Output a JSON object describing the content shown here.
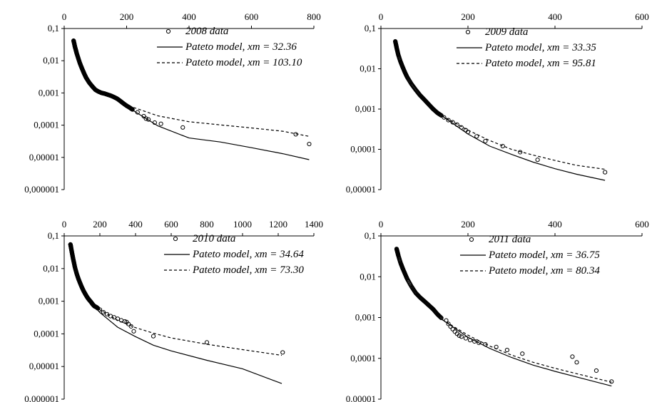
{
  "chart_data": [
    {
      "type": "scatter",
      "xlim": [
        0,
        800
      ],
      "x_ticks": [
        "0",
        "200",
        "400",
        "600",
        "800"
      ],
      "x_tick_values": [
        0,
        200,
        400,
        600,
        800
      ],
      "y_scale": "log",
      "ylim": [
        1e-06,
        0.1
      ],
      "y_ticks": [
        "0,1",
        "0,01",
        "0,001",
        "0,0001",
        "0,00001",
        "0,000001"
      ],
      "y_tick_values": [
        0.1,
        0.01,
        0.001,
        0.0001,
        1e-05,
        1e-06
      ],
      "x_axis_position": "top",
      "legend_position": "top-right",
      "grid": false,
      "series": [
        {
          "name": "2008 data",
          "style": "markers-open-circle",
          "x": [
            235,
            255,
            262,
            270,
            290,
            310,
            380,
            742,
            785
          ],
          "y": [
            0.00025,
            0.00019,
            0.00016,
            0.00015,
            0.00012,
            0.00011,
            8.5e-05,
            5.2e-05,
            2.6e-05
          ],
          "dense_x": [
            30,
            32,
            34,
            37,
            40,
            45,
            50,
            55,
            60,
            65,
            70,
            80,
            90,
            100,
            110,
            120,
            130,
            140,
            150,
            160,
            170,
            180,
            190,
            200,
            210,
            220
          ],
          "dense_y": [
            0.042,
            0.035,
            0.028,
            0.022,
            0.017,
            0.012,
            0.0085,
            0.0064,
            0.0049,
            0.0038,
            0.003,
            0.0021,
            0.0016,
            0.00125,
            0.0011,
            0.001,
            0.00095,
            0.00088,
            0.00082,
            0.00074,
            0.00066,
            0.00056,
            0.00047,
            0.0004,
            0.00035,
            0.0003
          ]
        },
        {
          "name": "Pateto model, xm = 32.36",
          "style": "solid-line",
          "x": [
            150,
            200,
            300,
            400,
            500,
            600,
            700,
            785
          ],
          "y": [
            0.00075,
            0.00038,
            9.5e-05,
            4e-05,
            3e-05,
            2e-05,
            1.3e-05,
            8.5e-06
          ]
        },
        {
          "name": "Pateto model, xm = 103.10",
          "style": "dashed-line",
          "x": [
            150,
            200,
            300,
            400,
            500,
            600,
            700,
            785
          ],
          "y": [
            0.00075,
            0.00042,
            0.000195,
            0.000128,
            0.000102,
            8.2e-05,
            6.5e-05,
            4.5e-05
          ]
        }
      ]
    },
    {
      "type": "scatter",
      "xlim": [
        0,
        600
      ],
      "x_ticks": [
        "0",
        "200",
        "400",
        "600"
      ],
      "x_tick_values": [
        0,
        200,
        400,
        600
      ],
      "y_scale": "log",
      "ylim": [
        1e-05,
        0.1
      ],
      "y_ticks": [
        "0,1",
        "0,01",
        "0,001",
        "0,0001",
        "0,00001"
      ],
      "y_tick_values": [
        0.1,
        0.01,
        0.001,
        0.0001,
        1e-05
      ],
      "x_axis_position": "top",
      "legend_position": "top-right",
      "grid": false,
      "series": [
        {
          "name": "2009 data",
          "style": "markers-open-circle",
          "x": [
            145,
            155,
            165,
            175,
            185,
            195,
            200,
            220,
            240,
            280,
            320,
            360,
            515
          ],
          "y": [
            0.00062,
            0.00053,
            0.00047,
            0.00041,
            0.00035,
            0.0003,
            0.00027,
            0.00021,
            0.00016,
            0.00012,
            8.5e-05,
            5.5e-05,
            2.7e-05
          ],
          "dense_x": [
            33,
            35,
            37,
            40,
            45,
            50,
            55,
            60,
            70,
            80,
            90,
            100,
            110,
            120,
            130,
            140
          ],
          "dense_y": [
            0.048,
            0.038,
            0.03,
            0.022,
            0.015,
            0.011,
            0.0082,
            0.0063,
            0.0042,
            0.003,
            0.0022,
            0.0017,
            0.0013,
            0.001,
            0.0008,
            0.00068
          ]
        },
        {
          "name": "Pateto model, xm = 33.35",
          "style": "solid-line",
          "x": [
            140,
            200,
            250,
            300,
            350,
            400,
            450,
            515
          ],
          "y": [
            0.00068,
            0.00024,
            0.00012,
            7.5e-05,
            4.8e-05,
            3.3e-05,
            2.4e-05,
            1.7e-05
          ]
        },
        {
          "name": "Pateto model, xm = 95.81",
          "style": "dashed-line",
          "x": [
            140,
            200,
            250,
            300,
            350,
            400,
            450,
            515
          ],
          "y": [
            0.00068,
            0.0003,
            0.000165,
            0.0001,
            7.2e-05,
            5.3e-05,
            4e-05,
            3.2e-05
          ]
        }
      ]
    },
    {
      "type": "scatter",
      "xlim": [
        0,
        1400
      ],
      "x_ticks": [
        "0",
        "200",
        "400",
        "600",
        "800",
        "1000",
        "1200",
        "1400"
      ],
      "x_tick_values": [
        0,
        200,
        400,
        600,
        800,
        1000,
        1200,
        1400
      ],
      "y_scale": "log",
      "ylim": [
        1e-06,
        0.1
      ],
      "y_ticks": [
        "0,1",
        "0,01",
        "0,001",
        "0,0001",
        "0,00001",
        "0,000001"
      ],
      "y_tick_values": [
        0.1,
        0.01,
        0.001,
        0.0001,
        1e-05,
        1e-06
      ],
      "x_axis_position": "top",
      "legend_position": "top-right",
      "grid": false,
      "series": [
        {
          "name": "2010 data",
          "style": "markers-open-circle",
          "x": [
            200,
            220,
            240,
            260,
            280,
            300,
            320,
            340,
            350,
            360,
            375,
            390,
            500,
            800,
            1225
          ],
          "y": [
            0.00055,
            0.00046,
            0.0004,
            0.00035,
            0.00032,
            0.00029,
            0.00026,
            0.00024,
            0.00023,
            0.0002,
            0.00017,
            0.00012,
            8.5e-05,
            5.5e-05,
            2.7e-05
          ],
          "dense_x": [
            35,
            38,
            42,
            46,
            50,
            55,
            60,
            70,
            80,
            90,
            100,
            110,
            120,
            130,
            140,
            150,
            160,
            170,
            180,
            190
          ],
          "dense_y": [
            0.055,
            0.045,
            0.034,
            0.026,
            0.02,
            0.015,
            0.011,
            0.007,
            0.0048,
            0.0035,
            0.0026,
            0.002,
            0.0016,
            0.0013,
            0.0011,
            0.00095,
            0.0008,
            0.0007,
            0.00066,
            0.0006
          ]
        },
        {
          "name": "Pateto model, xm = 34.64",
          "style": "solid-line",
          "x": [
            150,
            200,
            300,
            400,
            500,
            600,
            800,
            1000,
            1220
          ],
          "y": [
            0.0009,
            0.00045,
            0.00016,
            8.2e-05,
            4.5e-05,
            3e-05,
            1.55e-05,
            8.5e-06,
            3e-06
          ]
        },
        {
          "name": "Pateto model, xm = 73.30",
          "style": "dashed-line",
          "x": [
            150,
            200,
            300,
            400,
            500,
            600,
            800,
            1000,
            1220
          ],
          "y": [
            0.0009,
            0.00055,
            0.00026,
            0.000155,
            0.000105,
            7.5e-05,
            4.8e-05,
            3.3e-05,
            2.2e-05
          ]
        }
      ]
    },
    {
      "type": "scatter",
      "xlim": [
        0,
        600
      ],
      "x_ticks": [
        "0",
        "200",
        "400",
        "600"
      ],
      "x_tick_values": [
        0,
        200,
        400,
        600
      ],
      "y_scale": "log",
      "ylim": [
        1e-05,
        0.1
      ],
      "y_ticks": [
        "0,1",
        "0,01",
        "0,001",
        "0,0001",
        "0.00001"
      ],
      "y_tick_values": [
        0.1,
        0.01,
        0.001,
        0.0001,
        1e-05
      ],
      "x_axis_position": "top",
      "legend_position": "top-right",
      "grid": false,
      "series": [
        {
          "name": "2011 data",
          "style": "markers-open-circle",
          "x": [
            150,
            155,
            160,
            165,
            170,
            175,
            180,
            185,
            195,
            205,
            215,
            225,
            240,
            265,
            290,
            325,
            440,
            450,
            495,
            530
          ],
          "y": [
            0.00085,
            0.0007,
            0.0006,
            0.00052,
            0.00045,
            0.0004,
            0.00036,
            0.00034,
            0.00031,
            0.00028,
            0.00026,
            0.00024,
            0.00022,
            0.00019,
            0.00016,
            0.00013,
            0.00011,
            8e-05,
            5e-05,
            2.7e-05
          ],
          "dense_x": [
            36,
            38,
            40,
            45,
            50,
            55,
            60,
            70,
            80,
            90,
            100,
            110,
            120,
            130,
            140
          ],
          "dense_y": [
            0.048,
            0.04,
            0.033,
            0.022,
            0.016,
            0.012,
            0.009,
            0.0058,
            0.004,
            0.0031,
            0.0025,
            0.002,
            0.0016,
            0.0012,
            0.00095
          ]
        },
        {
          "name": "Pateto model, xm = 36.75",
          "style": "solid-line",
          "x": [
            140,
            200,
            250,
            300,
            350,
            400,
            450,
            530
          ],
          "y": [
            0.0009,
            0.00033,
            0.000175,
            0.000105,
            6.8e-05,
            4.8e-05,
            3.5e-05,
            2.1e-05
          ]
        },
        {
          "name": "Pateto model, xm = 80.34",
          "style": "dashed-line",
          "x": [
            140,
            200,
            250,
            300,
            350,
            400,
            450,
            530
          ],
          "y": [
            0.0009,
            0.00037,
            0.0002,
            0.00012,
            8e-05,
            5.7e-05,
            4.2e-05,
            2.6e-05
          ]
        }
      ]
    }
  ]
}
